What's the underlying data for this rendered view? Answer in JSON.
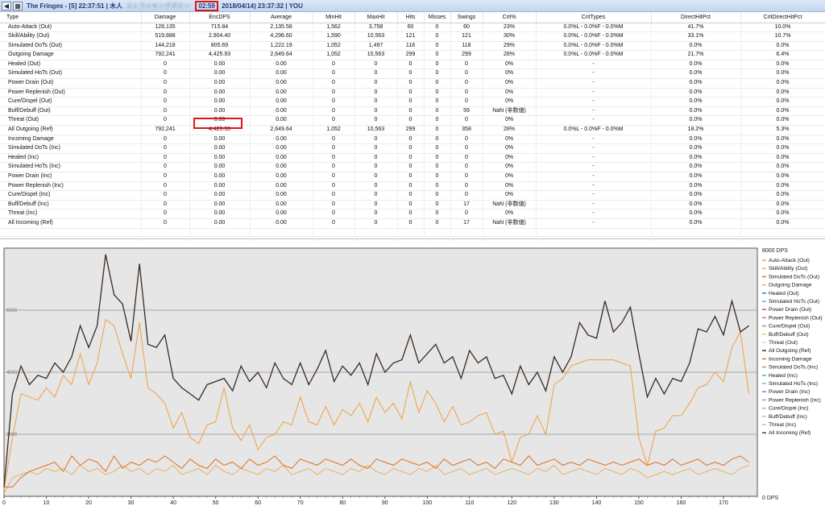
{
  "titlebar": {
    "zone": "The Fringes - [5] 22:37:51 | 木人",
    "blurred": "ストライキングダミー",
    "timer": "02:59",
    "rest": "2018/04/14) 23:37:32 | YOU"
  },
  "table": {
    "columns": [
      "Type",
      "Damage",
      "EncDPS",
      "Average",
      "MinHit",
      "MaxHit",
      "Hits",
      "Misses",
      "Swings",
      "Crit%",
      "CritTypes",
      "DirectHitPct",
      "CritDirectHitPct"
    ],
    "rows": [
      [
        "Auto-Attack (Out)",
        "128,135",
        "715.84",
        "2,135.58",
        "1,562",
        "3,758",
        "60",
        "0",
        "60",
        "23%",
        "0.0%L - 0.0%F - 0.0%M",
        "41.7%",
        "10.0%"
      ],
      [
        "Skill/Ability (Out)",
        "519,888",
        "2,904.40",
        "4,296.60",
        "1,590",
        "10,563",
        "121",
        "0",
        "121",
        "30%",
        "0.0%L - 0.0%F - 0.0%M",
        "33.1%",
        "10.7%"
      ],
      [
        "Simulated DoTs (Out)",
        "144,218",
        "805.69",
        "1,222.19",
        "1,052",
        "1,497",
        "118",
        "0",
        "118",
        "29%",
        "0.0%L - 0.0%F - 0.0%M",
        "0.0%",
        "0.0%"
      ],
      [
        "Outgoing Damage",
        "792,241",
        "4,425.93",
        "2,649.64",
        "1,052",
        "10,563",
        "299",
        "0",
        "299",
        "28%",
        "0.0%L - 0.0%F - 0.0%M",
        "21.7%",
        "6.4%"
      ],
      [
        "Healed (Out)",
        "0",
        "0.00",
        "0.00",
        "0",
        "0",
        "0",
        "0",
        "0",
        "0%",
        "-",
        "0.0%",
        "0.0%"
      ],
      [
        "Simulated HoTs (Out)",
        "0",
        "0.00",
        "0.00",
        "0",
        "0",
        "0",
        "0",
        "0",
        "0%",
        "-",
        "0.0%",
        "0.0%"
      ],
      [
        "Power Drain (Out)",
        "0",
        "0.00",
        "0.00",
        "0",
        "0",
        "0",
        "0",
        "0",
        "0%",
        "-",
        "0.0%",
        "0.0%"
      ],
      [
        "Power Replenish (Out)",
        "0",
        "0.00",
        "0.00",
        "0",
        "0",
        "0",
        "0",
        "0",
        "0%",
        "-",
        "0.0%",
        "0.0%"
      ],
      [
        "Cure/Dispel (Out)",
        "0",
        "0.00",
        "0.00",
        "0",
        "0",
        "0",
        "0",
        "0",
        "0%",
        "-",
        "0.0%",
        "0.0%"
      ],
      [
        "Buff/Debuff (Out)",
        "0",
        "0.00",
        "0.00",
        "0",
        "0",
        "0",
        "0",
        "59",
        "NaN (非数値)",
        "-",
        "0.0%",
        "0.0%"
      ],
      [
        "Threat (Out)",
        "0",
        "0.00",
        "0.00",
        "0",
        "0",
        "0",
        "0",
        "0",
        "0%",
        "-",
        "0.0%",
        "0.0%"
      ],
      [
        "All Outgoing (Ref)",
        "792,241",
        "4,425.93",
        "2,649.64",
        "1,052",
        "10,563",
        "299",
        "0",
        "358",
        "28%",
        "0.0%L - 0.0%F - 0.0%M",
        "18.2%",
        "5.3%"
      ],
      [
        "Incoming Damage",
        "0",
        "0.00",
        "0.00",
        "0",
        "0",
        "0",
        "0",
        "0",
        "0%",
        "-",
        "0.0%",
        "0.0%"
      ],
      [
        "Simulated DoTs (Inc)",
        "0",
        "0.00",
        "0.00",
        "0",
        "0",
        "0",
        "0",
        "0",
        "0%",
        "-",
        "0.0%",
        "0.0%"
      ],
      [
        "Healed (Inc)",
        "0",
        "0.00",
        "0.00",
        "0",
        "0",
        "0",
        "0",
        "0",
        "0%",
        "-",
        "0.0%",
        "0.0%"
      ],
      [
        "Simulated HoTs (Inc)",
        "0",
        "0.00",
        "0.00",
        "0",
        "0",
        "0",
        "0",
        "0",
        "0%",
        "-",
        "0.0%",
        "0.0%"
      ],
      [
        "Power Drain (Inc)",
        "0",
        "0.00",
        "0.00",
        "0",
        "0",
        "0",
        "0",
        "0",
        "0%",
        "-",
        "0.0%",
        "0.0%"
      ],
      [
        "Power Replenish (Inc)",
        "0",
        "0.00",
        "0.00",
        "0",
        "0",
        "0",
        "0",
        "0",
        "0%",
        "-",
        "0.0%",
        "0.0%"
      ],
      [
        "Cure/Dispel (Inc)",
        "0",
        "0.00",
        "0.00",
        "0",
        "0",
        "0",
        "0",
        "0",
        "0%",
        "-",
        "0.0%",
        "0.0%"
      ],
      [
        "Buff/Debuff (Inc)",
        "0",
        "0.00",
        "0.00",
        "0",
        "0",
        "0",
        "0",
        "17",
        "NaN (非数値)",
        "-",
        "0.0%",
        "0.0%"
      ],
      [
        "Threat (Inc)",
        "0",
        "0.00",
        "0.00",
        "0",
        "0",
        "0",
        "0",
        "0",
        "0%",
        "-",
        "0.0%",
        "0.0%"
      ],
      [
        "All Incoming (Ref)",
        "0",
        "0.00",
        "0.00",
        "0",
        "0",
        "0",
        "0",
        "17",
        "NaN (非数値)",
        "-",
        "0.0%",
        "0.0%"
      ]
    ]
  },
  "chart_data": {
    "type": "line",
    "title": "",
    "xlabel": "",
    "ylabel": "",
    "xlim": [
      0,
      178
    ],
    "ylim": [
      0,
      8000
    ],
    "x_ticks": [
      "0",
      "10",
      "20",
      "30",
      "40",
      "50",
      "60",
      "70",
      "80",
      "90",
      "100",
      "110",
      "120",
      "130",
      "140",
      "150",
      "160",
      "170"
    ],
    "y_ticks": [
      "2000",
      "4000",
      "6000"
    ],
    "y_max_label": "8000 DPS",
    "y_min_label": "0 DPS",
    "grid": true,
    "legend_position": "right",
    "legend": [
      {
        "name": "Auto-Attack (Out)",
        "color": "#e8a040"
      },
      {
        "name": "Skill/Ability (Out)",
        "color": "#f0b030"
      },
      {
        "name": "Simulated DoTs (Out)",
        "color": "#e07020"
      },
      {
        "name": "Outgoing Damage",
        "color": "#f0a040"
      },
      {
        "name": "Healed (Out)",
        "color": "#4060d0"
      },
      {
        "name": "Simulated HoTs (Out)",
        "color": "#60a0e0"
      },
      {
        "name": "Power Drain (Out)",
        "color": "#c04040"
      },
      {
        "name": "Power Replenish (Out)",
        "color": "#c060c0"
      },
      {
        "name": "Cure/Dispel (Out)",
        "color": "#909090"
      },
      {
        "name": "Buff/Debuff (Out)",
        "color": "#d0d060"
      },
      {
        "name": "Threat (Out)",
        "color": "#e0e0a0"
      },
      {
        "name": "All Outgoing (Ref)",
        "color": "#3a2a20"
      },
      {
        "name": "Incoming Damage",
        "color": "#e06060"
      },
      {
        "name": "Simulated DoTs (Inc)",
        "color": "#d08040"
      },
      {
        "name": "Healed (Inc)",
        "color": "#60b060"
      },
      {
        "name": "Simulated HoTs (Inc)",
        "color": "#60c0c0"
      },
      {
        "name": "Power Drain (Inc)",
        "color": "#a060e0"
      },
      {
        "name": "Power Replenish (Inc)",
        "color": "#e060e0"
      },
      {
        "name": "Cure/Dispel (Inc)",
        "color": "#b0b0b0"
      },
      {
        "name": "Buff/Debuff (Inc)",
        "color": "#d0c080"
      },
      {
        "name": "Threat (Inc)",
        "color": "#c0c0c0"
      },
      {
        "name": "All Incoming (Ref)",
        "color": "#403020"
      }
    ],
    "x": [
      0,
      2,
      4,
      6,
      8,
      10,
      12,
      14,
      16,
      18,
      20,
      22,
      24,
      26,
      28,
      30,
      32,
      34,
      36,
      38,
      40,
      42,
      44,
      46,
      48,
      50,
      52,
      54,
      56,
      58,
      60,
      62,
      64,
      66,
      68,
      70,
      72,
      74,
      76,
      78,
      80,
      82,
      84,
      86,
      88,
      90,
      92,
      94,
      96,
      98,
      100,
      102,
      104,
      106,
      108,
      110,
      112,
      114,
      116,
      118,
      120,
      122,
      124,
      126,
      128,
      130,
      132,
      134,
      136,
      138,
      140,
      142,
      144,
      146,
      148,
      150,
      152,
      154,
      156,
      158,
      160,
      162,
      164,
      166,
      168,
      170,
      172,
      174,
      176
    ],
    "series": [
      {
        "name": "All Outgoing (Ref)",
        "color": "#3a2a20",
        "values": [
          300,
          3300,
          4200,
          3600,
          3900,
          3800,
          4300,
          4000,
          4500,
          5500,
          4800,
          5500,
          7800,
          6500,
          6200,
          5000,
          7500,
          4900,
          4800,
          5200,
          3800,
          3500,
          3300,
          3100,
          3600,
          3700,
          3800,
          3400,
          4200,
          3700,
          4000,
          3500,
          4300,
          3800,
          3600,
          4300,
          3600,
          4100,
          4700,
          3700,
          4200,
          3900,
          4300,
          3600,
          4600,
          4000,
          4300,
          4400,
          5200,
          4300,
          4600,
          4900,
          4300,
          4500,
          3800,
          4700,
          4300,
          4500,
          3800,
          3900,
          3300,
          4200,
          3600,
          4000,
          3400,
          4500,
          4000,
          4500,
          5600,
          5200,
          5100,
          6300,
          5300,
          5600,
          6100,
          4600,
          3200,
          3800,
          3300,
          3800,
          3700,
          4300,
          5400,
          5300,
          5800,
          5200,
          6300,
          5300,
          5500
        ]
      },
      {
        "name": "Outgoing Damage",
        "color": "#f0a040",
        "values": [
          200,
          1900,
          3300,
          3200,
          3100,
          3500,
          3200,
          3900,
          3600,
          4600,
          3600,
          4300,
          5700,
          5500,
          4600,
          3800,
          5600,
          3500,
          3300,
          3000,
          2200,
          2700,
          1900,
          1700,
          2300,
          2400,
          3500,
          2200,
          1800,
          2300,
          1500,
          1900,
          2000,
          2400,
          2300,
          3200,
          2400,
          2300,
          2900,
          2300,
          2800,
          2600,
          3000,
          2400,
          3200,
          2700,
          3000,
          2500,
          3700,
          2700,
          3400,
          3000,
          2400,
          2900,
          2300,
          2400,
          2600,
          2700,
          2000,
          2100,
          1100,
          1900,
          2000,
          2600,
          2000,
          3600,
          3800,
          4200,
          4300,
          4400,
          4400,
          4400,
          4400,
          4300,
          4200,
          1900,
          1000,
          2100,
          2200,
          2600,
          2600,
          3000,
          3500,
          3600,
          4000,
          3700,
          4800,
          5300,
          3300
        ]
      },
      {
        "name": "Simulated DoTs (Out)",
        "color": "#e07020",
        "values": [
          300,
          300,
          600,
          800,
          900,
          1000,
          1100,
          800,
          1300,
          1000,
          1200,
          1100,
          800,
          1300,
          900,
          1100,
          1000,
          1200,
          1100,
          1300,
          1100,
          900,
          1200,
          1000,
          900,
          1200,
          1000,
          1100,
          900,
          1200,
          1000,
          1100,
          1300,
          1000,
          900,
          1200,
          1100,
          1000,
          1200,
          1100,
          1000,
          1200,
          1000,
          900,
          1200,
          1100,
          1000,
          1200,
          1100,
          1000,
          1100,
          900,
          1200,
          1000,
          1100,
          1200,
          1000,
          1100,
          900,
          1200,
          1100,
          1000,
          1300,
          1000,
          1100,
          1200,
          1000,
          1100,
          1000,
          1200,
          1100,
          1000,
          1100,
          1000,
          1100,
          1200,
          1000,
          1100,
          1000,
          1200,
          1000,
          1100,
          1200,
          1000,
          1100,
          1000,
          1200,
          1300,
          1100
        ]
      },
      {
        "name": "Auto-Attack (Out)",
        "color": "#e8b060",
        "values": [
          100,
          600,
          700,
          800,
          700,
          900,
          800,
          900,
          700,
          1000,
          800,
          900,
          700,
          800,
          1000,
          800,
          900,
          700,
          900,
          800,
          1000,
          700,
          800,
          900,
          700,
          1000,
          800,
          700,
          900,
          800,
          700,
          900,
          800,
          1000,
          700,
          800,
          900,
          700,
          900,
          800,
          700,
          900,
          800,
          1000,
          800,
          700,
          900,
          800,
          700,
          900,
          800,
          1000,
          700,
          800,
          900,
          700,
          800,
          900,
          700,
          800,
          900,
          800,
          700,
          900,
          800,
          1000,
          700,
          800,
          900,
          800,
          700,
          900,
          800,
          700,
          900,
          800,
          600,
          700,
          800,
          700,
          800,
          900,
          700,
          800,
          900,
          800,
          700,
          900,
          1000
        ]
      }
    ]
  }
}
